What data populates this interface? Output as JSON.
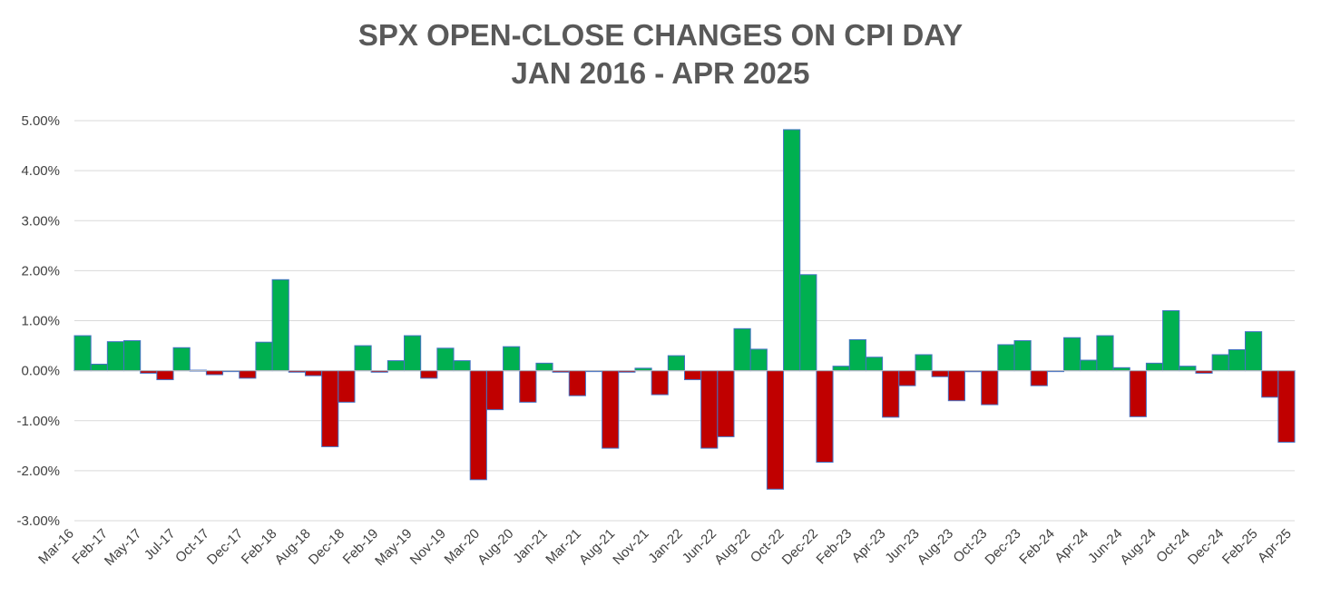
{
  "chart_data": {
    "type": "bar",
    "title": "SPX OPEN-CLOSE CHANGES ON CPI DAY",
    "subtitle": "JAN 2016 - APR 2025",
    "xlabel": "",
    "ylabel": "",
    "ylim": [
      -3.0,
      5.0
    ],
    "yticks": [
      "5.00%",
      "4.00%",
      "3.00%",
      "2.00%",
      "1.00%",
      "0.00%",
      "-1.00%",
      "-2.00%",
      "-3.00%"
    ],
    "grid": true,
    "legend": "none",
    "colors": {
      "positive": "#00b050",
      "negative": "#c00000",
      "bar_border": "#4472c4",
      "grid": "#d9d9d9"
    },
    "values": [
      0.7,
      0.13,
      0.58,
      0.6,
      -0.05,
      -0.18,
      0.46,
      0.01,
      -0.08,
      0.0,
      -0.15,
      0.57,
      1.82,
      -0.03,
      -0.1,
      -1.52,
      -0.63,
      0.5,
      -0.03,
      0.2,
      0.7,
      -0.15,
      0.45,
      0.2,
      -2.18,
      -0.78,
      0.48,
      -0.63,
      0.15,
      -0.03,
      -0.5,
      0.0,
      -1.55,
      -0.03,
      0.05,
      -0.48,
      0.3,
      -0.18,
      -1.55,
      -1.32,
      0.84,
      0.43,
      -2.37,
      4.82,
      1.92,
      -1.83,
      0.09,
      0.62,
      0.27,
      -0.93,
      -0.3,
      0.32,
      -0.12,
      -0.6,
      -0.02,
      -0.68,
      0.52,
      0.6,
      -0.3,
      -0.01,
      0.66,
      0.21,
      0.7,
      0.06,
      -0.92,
      0.15,
      1.2,
      0.09,
      -0.05,
      0.32,
      0.42,
      0.78,
      -0.53,
      -1.43
    ],
    "tick_labels": [
      "Mar-16",
      "Feb-17",
      "May-17",
      "Jul-17",
      "Oct-17",
      "Dec-17",
      "Feb-18",
      "Aug-18",
      "Dec-18",
      "Feb-19",
      "May-19",
      "Nov-19",
      "Mar-20",
      "Aug-20",
      "Jan-21",
      "Mar-21",
      "Aug-21",
      "Nov-21",
      "Jan-22",
      "Jun-22",
      "Aug-22",
      "Oct-22",
      "Dec-22",
      "Feb-23",
      "Apr-23",
      "Jun-23",
      "Aug-23",
      "Oct-23",
      "Dec-23",
      "Feb-24",
      "Apr-24",
      "Jun-24",
      "Aug-24",
      "Oct-24",
      "Dec-24",
      "Feb-25",
      "Apr-25"
    ]
  }
}
